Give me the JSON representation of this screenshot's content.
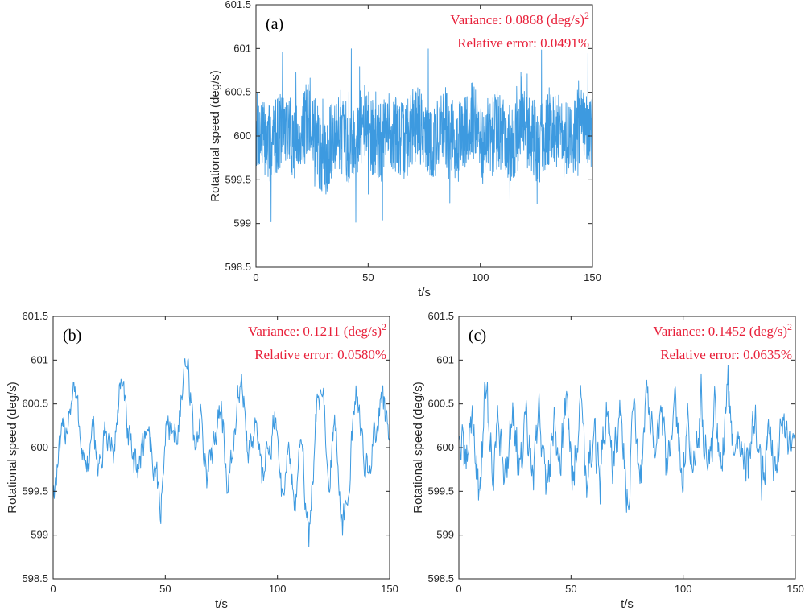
{
  "colors": {
    "series": "#3d9ae0",
    "annotation": "#e8203a"
  },
  "chart_data": [
    {
      "type": "line",
      "panel_label": "(a)",
      "xlabel": "t/s",
      "ylabel": "Rotational speed (deg/s)",
      "xlim": [
        0,
        150
      ],
      "ylim": [
        598.5,
        601.5
      ],
      "x_ticks": [
        "0",
        "50",
        "100",
        "150"
      ],
      "y_ticks": [
        "598.5",
        "599",
        "599.5",
        "600",
        "600.5",
        "601",
        "601.5"
      ],
      "annotations": {
        "variance": "Variance: 0.0868 (deg/s)",
        "exponent": "2",
        "relative_error": "Relative error: 0.0491%"
      },
      "series": [
        {
          "x": [
            0,
            6,
            12,
            18,
            24,
            30,
            36,
            42,
            48,
            54,
            60,
            66,
            72,
            78,
            84,
            90,
            96,
            102,
            108,
            114,
            120,
            126,
            132,
            138,
            144,
            150
          ],
          "y": [
            600.3,
            599.6,
            600.5,
            599.7,
            600.9,
            598.7,
            600.4,
            599.5,
            600.6,
            599.6,
            600.3,
            599.7,
            600.8,
            599.4,
            600.5,
            599.6,
            600.9,
            599.3,
            600.4,
            599.6,
            600.5,
            599.5,
            600.7,
            599.7,
            600.4,
            599.9
          ],
          "sampling": "dense",
          "style": "dense"
        }
      ]
    },
    {
      "type": "line",
      "panel_label": "(b)",
      "xlabel": "t/s",
      "ylabel": "Rotational speed (deg/s)",
      "xlim": [
        0,
        150
      ],
      "ylim": [
        598.5,
        601.5
      ],
      "x_ticks": [
        "0",
        "50",
        "100",
        "150"
      ],
      "y_ticks": [
        "598.5",
        "599",
        "599.5",
        "600",
        "600.5",
        "601",
        "601.5"
      ],
      "annotations": {
        "variance": "Variance: 0.1211 (deg/s)",
        "exponent": "2",
        "relative_error": "Relative error: 0.0580%"
      },
      "series": [
        {
          "x": [
            0,
            3,
            6,
            9,
            12,
            15,
            18,
            21,
            24,
            27,
            30,
            33,
            36,
            39,
            42,
            45,
            48,
            51,
            54,
            57,
            60,
            63,
            66,
            69,
            72,
            75,
            78,
            81,
            84,
            87,
            90,
            93,
            96,
            99,
            102,
            105,
            108,
            111,
            114,
            117,
            120,
            123,
            126,
            129,
            132,
            135,
            138,
            141,
            144,
            147,
            150
          ],
          "y": [
            599.5,
            599.9,
            600.3,
            600.7,
            600.2,
            599.7,
            600.1,
            599.8,
            600.2,
            599.9,
            600.8,
            600.2,
            599.7,
            599.9,
            600.3,
            599.8,
            599.3,
            600.4,
            600.1,
            600.5,
            600.9,
            600.0,
            600.3,
            599.6,
            600.2,
            600.6,
            599.4,
            600.2,
            600.9,
            599.8,
            600.4,
            599.6,
            600.1,
            600.3,
            599.5,
            600.0,
            599.3,
            600.1,
            598.9,
            600.3,
            600.7,
            599.8,
            600.2,
            599.0,
            599.8,
            600.5,
            600.1,
            599.6,
            600.3,
            600.6,
            599.9
          ],
          "sampling": "medium",
          "style": "normal"
        }
      ]
    },
    {
      "type": "line",
      "panel_label": "(c)",
      "xlabel": "t/s",
      "ylabel": "Rotational speed (deg/s)",
      "xlim": [
        0,
        150
      ],
      "ylim": [
        598.5,
        601.5
      ],
      "x_ticks": [
        "0",
        "50",
        "100",
        "150"
      ],
      "y_ticks": [
        "598.5",
        "599",
        "599.5",
        "600",
        "600.5",
        "601",
        "601.5"
      ],
      "annotations": {
        "variance": "Variance: 0.1452 (deg/s)",
        "exponent": "2",
        "relative_error": "Relative error: 0.0635%"
      },
      "series": [
        {
          "x": [
            0,
            3,
            6,
            9,
            12,
            15,
            18,
            21,
            24,
            27,
            30,
            33,
            36,
            39,
            42,
            45,
            48,
            51,
            54,
            57,
            60,
            63,
            66,
            69,
            72,
            75,
            78,
            81,
            84,
            87,
            90,
            93,
            96,
            99,
            102,
            105,
            108,
            111,
            114,
            117,
            120,
            123,
            126,
            129,
            132,
            135,
            138,
            141,
            144,
            147,
            150
          ],
          "y": [
            600.3,
            599.6,
            600.6,
            599.2,
            600.9,
            599.7,
            600.4,
            599.5,
            600.8,
            599.6,
            600.3,
            599.4,
            600.6,
            599.2,
            600.4,
            599.9,
            600.7,
            599.5,
            600.9,
            599.6,
            600.2,
            599.4,
            600.8,
            599.7,
            600.5,
            599.1,
            600.6,
            599.6,
            600.9,
            599.8,
            600.3,
            599.5,
            600.7,
            599.6,
            600.4,
            599.7,
            600.8,
            599.5,
            600.6,
            599.7,
            600.9,
            599.6,
            600.4,
            599.6,
            600.6,
            599.5,
            600.3,
            599.4,
            600.7,
            599.8,
            600.2
          ],
          "sampling": "medium",
          "style": "spiky"
        }
      ]
    }
  ]
}
